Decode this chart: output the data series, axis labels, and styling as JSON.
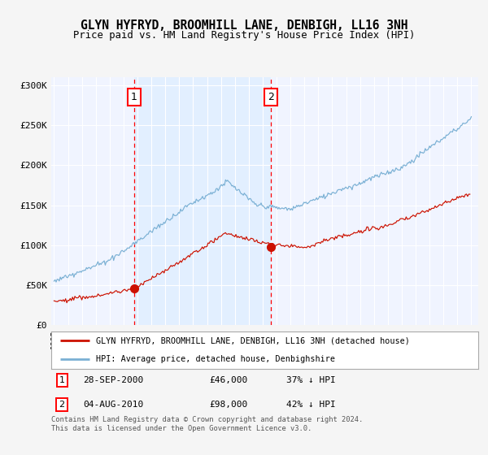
{
  "title": "GLYN HYFRYD, BROOMHILL LANE, DENBIGH, LL16 3NH",
  "subtitle": "Price paid vs. HM Land Registry's House Price Index (HPI)",
  "background_color": "#f5f5f5",
  "plot_bg_color": "#f0f4ff",
  "ytick_labels": [
    "£0",
    "£50K",
    "£100K",
    "£150K",
    "£200K",
    "£250K",
    "£300K"
  ],
  "yticks": [
    0,
    50000,
    100000,
    150000,
    200000,
    250000,
    300000
  ],
  "ylim": [
    0,
    310000
  ],
  "hpi_color": "#7ab0d4",
  "price_color": "#cc1100",
  "marker1_x": 2000.75,
  "marker1_y": 46000,
  "marker2_x": 2010.6,
  "marker2_y": 98000,
  "legend_label_price": "GLYN HYFRYD, BROOMHILL LANE, DENBIGH, LL16 3NH (detached house)",
  "legend_label_hpi": "HPI: Average price, detached house, Denbighshire",
  "footnote": "Contains HM Land Registry data © Crown copyright and database right 2024.\nThis data is licensed under the Open Government Licence v3.0.",
  "xmin": 1994.8,
  "xmax": 2025.5,
  "table_rows": [
    {
      "label": "1",
      "date": "28-SEP-2000",
      "price": "£46,000",
      "note": "37% ↓ HPI"
    },
    {
      "label": "2",
      "date": "04-AUG-2010",
      "price": "£98,000",
      "note": "42% ↓ HPI"
    }
  ]
}
